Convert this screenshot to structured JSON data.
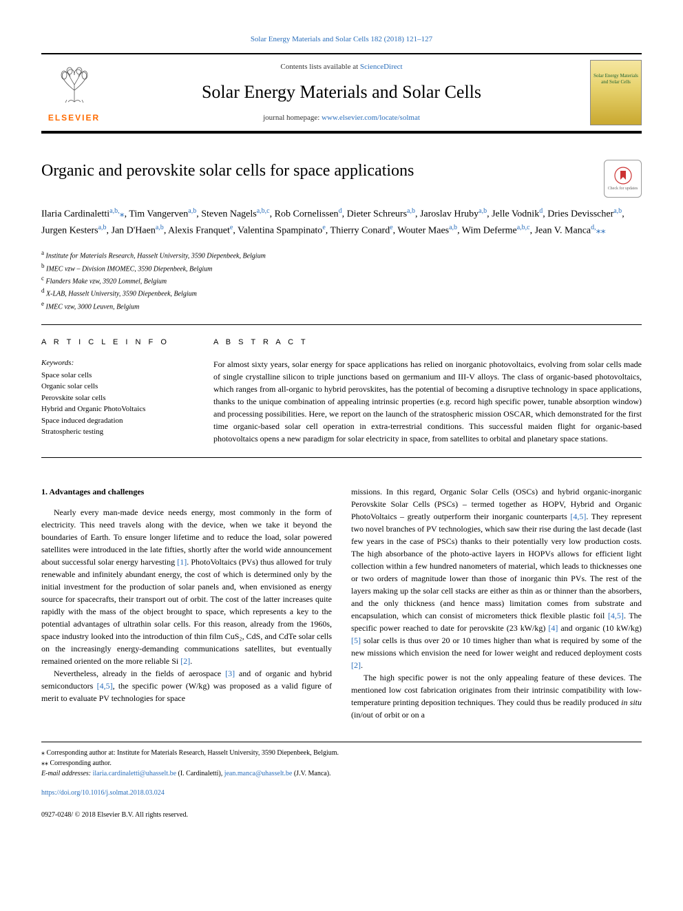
{
  "top_citation": "Solar Energy Materials and Solar Cells 182 (2018) 121–127",
  "header": {
    "contents_prefix": "Contents lists available at ",
    "contents_link": "ScienceDirect",
    "journal_name": "Solar Energy Materials and Solar Cells",
    "homepage_prefix": "journal homepage: ",
    "homepage_url": "www.elsevier.com/locate/solmat",
    "publisher_label": "ELSEVIER",
    "cover_line1": "Solar Energy Materials",
    "cover_line2": "and Solar Cells"
  },
  "check_updates_label": "Check for updates",
  "article": {
    "title": "Organic and perovskite solar cells for space applications",
    "authors_html": "Ilaria Cardinaletti<sup>a,b,</sup><span class='corr'>⁎</span>, Tim Vangerven<sup>a,b</sup>, Steven Nagels<sup>a,b,c</sup>, Rob Cornelissen<sup>d</sup>, Dieter Schreurs<sup>a,b</sup>, Jaroslav Hruby<sup>a,b</sup>, Jelle Vodnik<sup>d</sup>, Dries Devisscher<sup>a,b</sup>, Jurgen Kesters<sup>a,b</sup>, Jan D'Haen<sup>a,b</sup>, Alexis Franquet<sup>e</sup>, Valentina Spampinato<sup>e</sup>, Thierry Conard<sup>e</sup>, Wouter Maes<sup>a,b</sup>, Wim Deferme<sup>a,b,c</sup>, Jean V. Manca<sup>d,</sup><span class='corr'>⁎⁎</span>",
    "affiliations": [
      {
        "sup": "a",
        "text": "Institute for Materials Research, Hasselt University, 3590 Diepenbeek, Belgium"
      },
      {
        "sup": "b",
        "text": "IMEC vzw – Division IMOMEC, 3590 Diepenbeek, Belgium"
      },
      {
        "sup": "c",
        "text": "Flanders Make vzw, 3920 Lommel, Belgium"
      },
      {
        "sup": "d",
        "text": "X-LAB, Hasselt University, 3590 Diepenbeek, Belgium"
      },
      {
        "sup": "e",
        "text": "IMEC vzw, 3000 Leuven, Belgium"
      }
    ]
  },
  "info": {
    "header": "A R T I C L E  I N F O",
    "keywords_label": "Keywords:",
    "keywords": [
      "Space solar cells",
      "Organic solar cells",
      "Perovskite solar cells",
      "Hybrid and Organic PhotoVoltaics",
      "Space induced degradation",
      "Stratospheric testing"
    ]
  },
  "abstract": {
    "header": "A B S T R A C T",
    "text": "For almost sixty years, solar energy for space applications has relied on inorganic photovoltaics, evolving from solar cells made of single crystalline silicon to triple junctions based on germanium and III-V alloys. The class of organic-based photovoltaics, which ranges from all-organic to hybrid perovskites, has the potential of becoming a disruptive technology in space applications, thanks to the unique combination of appealing intrinsic properties (e.g. record high specific power, tunable absorption window) and processing possibilities. Here, we report on the launch of the stratospheric mission OSCAR, which demonstrated for the first time organic-based solar cell operation in extra-terrestrial conditions. This successful maiden flight for organic-based photovoltaics opens a new paradigm for solar electricity in space, from satellites to orbital and planetary space stations."
  },
  "body": {
    "section_title": "1. Advantages and challenges",
    "p1": "Nearly every man-made device needs energy, most commonly in the form of electricity. This need travels along with the device, when we take it beyond the boundaries of Earth. To ensure longer lifetime and to reduce the load, solar powered satellites were introduced in the late fifties, shortly after the world wide announcement about successful solar energy harvesting [1]. PhotoVoltaics (PVs) thus allowed for truly renewable and infinitely abundant energy, the cost of which is determined only by the initial investment for the production of solar panels and, when envisioned as energy source for spacecrafts, their transport out of orbit. The cost of the latter increases quite rapidly with the mass of the object brought to space, which represents a key to the potential advantages of ultrathin solar cells. For this reason, already from the 1960s, space industry looked into the introduction of thin film CuS₂, CdS, and CdTe solar cells on the increasingly energy-demanding communications satellites, but eventually remained oriented on the more reliable Si [2].",
    "p2": "Nevertheless, already in the fields of aerospace [3] and of organic and hybrid semiconductors [4,5], the specific power (W/kg) was proposed as a valid figure of merit to evaluate PV technologies for space",
    "p3": "missions. In this regard, Organic Solar Cells (OSCs) and hybrid organic-inorganic Perovskite Solar Cells (PSCs) – termed together as HOPV, Hybrid and Organic PhotoVoltaics – greatly outperform their inorganic counterparts [4,5]. They represent two novel branches of PV technologies, which saw their rise during the last decade (last few years in the case of PSCs) thanks to their potentially very low production costs. The high absorbance of the photo-active layers in HOPVs allows for efficient light collection within a few hundred nanometers of material, which leads to thicknesses one or two orders of magnitude lower than those of inorganic thin PVs. The rest of the layers making up the solar cell stacks are either as thin as or thinner than the absorbers, and the only thickness (and hence mass) limitation comes from substrate and encapsulation, which can consist of micrometers thick flexible plastic foil [4,5]. The specific power reached to date for perovskite (23 kW/kg) [4] and organic (10 kW/kg) [5] solar cells is thus over 20 or 10 times higher than what is required by some of the new missions which envision the need for lower weight and reduced deployment costs [2].",
    "p4": "The high specific power is not the only appealing feature of these devices. The mentioned low cost fabrication originates from their intrinsic compatibility with low-temperature printing deposition techniques. They could thus be readily produced in situ (in/out of orbit or on a"
  },
  "footnotes": {
    "corr1": "⁎ Corresponding author at: Institute for Materials Research, Hasselt University, 3590 Diepenbeek, Belgium.",
    "corr2": "⁎⁎ Corresponding author.",
    "email_label": "E-mail addresses: ",
    "email1": "ilaria.cardinaletti@uhasselt.be",
    "email1_who": " (I. Cardinaletti), ",
    "email2": "jean.manca@uhasselt.be",
    "email2_who": " (J.V. Manca)."
  },
  "doi": "https://doi.org/10.1016/j.solmat.2018.03.024",
  "issn_copyright": "0927-0248/ © 2018 Elsevier B.V. All rights reserved.",
  "colors": {
    "link": "#2a6ebb",
    "elsevier_orange": "#ff6b00"
  }
}
